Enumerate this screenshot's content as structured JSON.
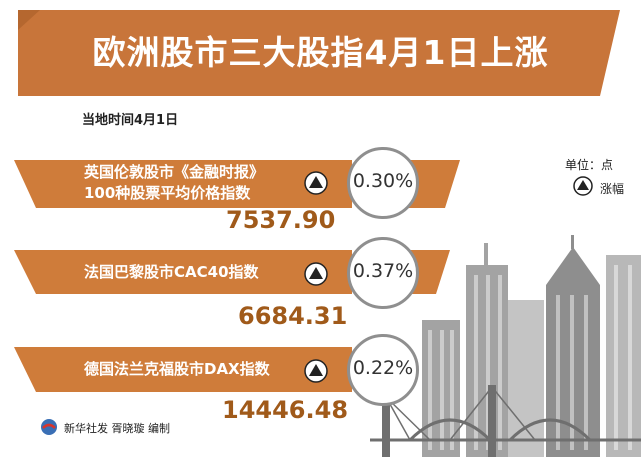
{
  "title": "欧洲股市三大股指4月1日上涨",
  "subtitle": "当地时间4月1日",
  "legend": {
    "unit": "单位：点",
    "label": "涨幅",
    "icon": "up-triangle-icon"
  },
  "indices": [
    {
      "name_line1": "英国伦敦股市《金融时报》",
      "name_line2": "100种股票平均价格指数",
      "value": "7537.90",
      "change": "0.30%"
    },
    {
      "name_line1": "法国巴黎股市CAC40指数",
      "value": "6684.31",
      "change": "0.37%"
    },
    {
      "name_line1": "德国法兰克福股市DAX指数",
      "value": "14446.48",
      "change": "0.22%"
    }
  ],
  "footer": {
    "text": "新华社发 胥晓璇 编制",
    "logo_icon": "xinhua-logo-icon"
  },
  "colors": {
    "banner": "#c8753a",
    "band": "#cf7c3a",
    "value": "#a05a1a",
    "skyline": "#9a9a9a"
  }
}
